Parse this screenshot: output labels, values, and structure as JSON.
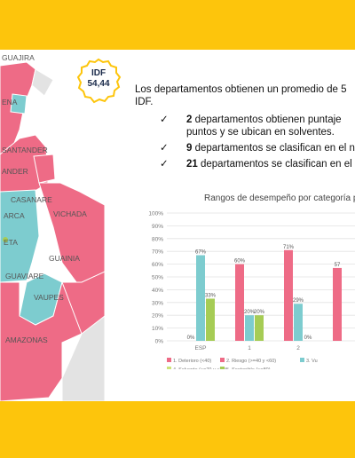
{
  "idf": {
    "label": "IDF",
    "value": "54,44"
  },
  "map": {
    "labels": [
      "GUAJIRA",
      "ENA",
      "SANTANDER",
      "ANDER",
      "CASANARE",
      "ARCA",
      "VICHADA",
      "ETA",
      "GUAINIA",
      "GUAVIARE",
      "VAUPES",
      "AMAZONAS"
    ]
  },
  "text": {
    "intro_line1": "Los departamentos obtienen un promedio de 5",
    "intro_line2": "IDF.",
    "bullets": [
      {
        "bold": "2",
        "rest": " departamentos obtienen puntaje",
        "cont": "puntos y se ubican en solventes."
      },
      {
        "bold": "9",
        "rest": " departamentos se clasifican en el n",
        "cont": ""
      },
      {
        "bold": "21",
        "rest": " departamentos se clasifican en el",
        "cont": ""
      }
    ],
    "check_glyph": "✓"
  },
  "chart_data": {
    "type": "bar",
    "title": "Rangos de desempeño por categoría p",
    "categories": [
      "ESP",
      "1",
      "2",
      ""
    ],
    "ylim": [
      0,
      100
    ],
    "yticks": [
      "0%",
      "10%",
      "20%",
      "30%",
      "40%",
      "50%",
      "60%",
      "70%",
      "80%",
      "90%",
      "100%"
    ],
    "grid": true,
    "series": [
      {
        "name": "1. Deterioro (<40)",
        "color": "#ee6b86",
        "values": [
          0,
          60,
          71,
          57
        ]
      },
      {
        "name": "2. Riesgo (>=40 y <60)",
        "color": "#ee6b86",
        "values": [
          null,
          null,
          null,
          null
        ]
      },
      {
        "name": "3. Vu",
        "color": "#7dcccf",
        "values": [
          67,
          20,
          29,
          null
        ]
      },
      {
        "name": "4. Solvente (>=70 y <80)",
        "color": "#cde27a",
        "values": [
          null,
          null,
          null,
          null
        ]
      },
      {
        "name": "5. Sostenible (>=80)",
        "color": "#a6cc55",
        "values": [
          33,
          20,
          0,
          null
        ]
      }
    ],
    "data_labels": [
      "0%",
      "67%",
      "33%",
      "60%",
      "20%",
      "20%",
      "71%",
      "29%",
      "0%",
      "57"
    ],
    "legend_position": "bottom"
  }
}
